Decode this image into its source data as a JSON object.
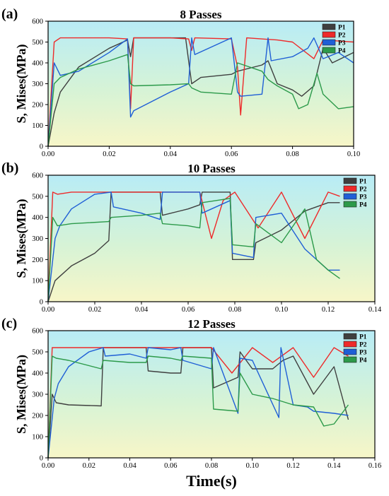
{
  "figure": {
    "xlabel": "Time(s)",
    "ylabel": "S, Mises(MPa)"
  },
  "series_colors": {
    "P1": "#3f3f3f",
    "P2": "#ee2a2a",
    "P3": "#1f5fd6",
    "P4": "#2c9a4a"
  },
  "chart_data": [
    {
      "type": "line",
      "panel": "(a)",
      "title": "8 Passes",
      "ylabel": "S, Mises(MPa)",
      "xlabel": "",
      "xlim": [
        0,
        0.1
      ],
      "ylim": [
        0,
        600
      ],
      "xticks": [
        0.0,
        0.02,
        0.04,
        0.06,
        0.08,
        0.1
      ],
      "xtick_labels": [
        "0.00",
        "0.02",
        "0.04",
        "0.06",
        "0.08",
        "0.10"
      ],
      "yticks": [
        0,
        100,
        200,
        300,
        400,
        500,
        600
      ],
      "legend_position": "top-right",
      "series": [
        {
          "name": "P1",
          "x": [
            0,
            0.002,
            0.004,
            0.01,
            0.02,
            0.026,
            0.027,
            0.028,
            0.035,
            0.045,
            0.047,
            0.05,
            0.06,
            0.062,
            0.07,
            0.072,
            0.075,
            0.08,
            0.083,
            0.087,
            0.09,
            0.093,
            0.1
          ],
          "y": [
            0,
            160,
            260,
            380,
            470,
            510,
            430,
            520,
            520,
            520,
            300,
            330,
            345,
            360,
            390,
            410,
            300,
            270,
            240,
            290,
            470,
            400,
            450
          ]
        },
        {
          "name": "P2",
          "x": [
            0,
            0.002,
            0.004,
            0.01,
            0.02,
            0.026,
            0.027,
            0.028,
            0.04,
            0.046,
            0.047,
            0.048,
            0.06,
            0.062,
            0.063,
            0.065,
            0.075,
            0.08,
            0.087,
            0.09,
            0.1
          ],
          "y": [
            0,
            500,
            520,
            520,
            520,
            515,
            180,
            520,
            520,
            515,
            460,
            520,
            515,
            380,
            150,
            520,
            510,
            500,
            420,
            510,
            500
          ]
        },
        {
          "name": "P3",
          "x": [
            0,
            0.002,
            0.004,
            0.01,
            0.02,
            0.026,
            0.027,
            0.028,
            0.04,
            0.046,
            0.047,
            0.048,
            0.06,
            0.062,
            0.063,
            0.07,
            0.072,
            0.073,
            0.08,
            0.085,
            0.087,
            0.09,
            0.095,
            0.1
          ],
          "y": [
            0,
            400,
            340,
            360,
            450,
            515,
            140,
            170,
            260,
            300,
            520,
            440,
            520,
            260,
            240,
            250,
            520,
            410,
            430,
            470,
            520,
            420,
            450,
            400
          ]
        },
        {
          "name": "P4",
          "x": [
            0,
            0.002,
            0.004,
            0.01,
            0.02,
            0.026,
            0.027,
            0.028,
            0.04,
            0.046,
            0.047,
            0.05,
            0.06,
            0.062,
            0.07,
            0.072,
            0.075,
            0.08,
            0.082,
            0.085,
            0.088,
            0.09,
            0.095,
            0.1
          ],
          "y": [
            0,
            300,
            330,
            370,
            410,
            440,
            300,
            290,
            295,
            300,
            280,
            260,
            250,
            400,
            360,
            320,
            290,
            250,
            180,
            200,
            350,
            250,
            180,
            190
          ]
        }
      ]
    },
    {
      "type": "line",
      "panel": "(b)",
      "title": "10 Passes",
      "ylabel": "S, Mises(MPa)",
      "xlabel": "",
      "xlim": [
        0,
        0.14
      ],
      "ylim": [
        0,
        600
      ],
      "xticks": [
        0.0,
        0.02,
        0.04,
        0.06,
        0.08,
        0.1,
        0.12,
        0.14
      ],
      "xtick_labels": [
        "0.00",
        "0.02",
        "0.04",
        "0.06",
        "0.08",
        "0.10",
        "0.12",
        "0.14"
      ],
      "yticks": [
        0,
        100,
        200,
        300,
        400,
        500,
        600
      ],
      "legend_position": "top-right",
      "series": [
        {
          "name": "P1",
          "x": [
            0,
            0.003,
            0.005,
            0.01,
            0.02,
            0.026,
            0.027,
            0.028,
            0.04,
            0.048,
            0.049,
            0.06,
            0.065,
            0.066,
            0.078,
            0.079,
            0.088,
            0.089,
            0.1,
            0.11,
            0.12,
            0.125
          ],
          "y": [
            0,
            100,
            120,
            170,
            230,
            290,
            520,
            520,
            520,
            520,
            410,
            440,
            460,
            520,
            520,
            200,
            200,
            280,
            340,
            430,
            470,
            470
          ]
        },
        {
          "name": "P2",
          "x": [
            0,
            0.002,
            0.004,
            0.01,
            0.03,
            0.05,
            0.065,
            0.07,
            0.075,
            0.08,
            0.09,
            0.1,
            0.11,
            0.12,
            0.125
          ],
          "y": [
            0,
            520,
            510,
            520,
            520,
            520,
            520,
            300,
            480,
            520,
            350,
            520,
            300,
            520,
            500
          ]
        },
        {
          "name": "P3",
          "x": [
            0,
            0.003,
            0.005,
            0.01,
            0.02,
            0.027,
            0.028,
            0.04,
            0.048,
            0.049,
            0.06,
            0.065,
            0.066,
            0.078,
            0.079,
            0.088,
            0.089,
            0.1,
            0.11,
            0.12,
            0.125
          ],
          "y": [
            0,
            300,
            360,
            440,
            510,
            520,
            450,
            420,
            390,
            520,
            520,
            520,
            420,
            480,
            230,
            210,
            400,
            420,
            250,
            150,
            150
          ]
        },
        {
          "name": "P4",
          "x": [
            0,
            0.002,
            0.004,
            0.01,
            0.026,
            0.027,
            0.04,
            0.048,
            0.049,
            0.06,
            0.065,
            0.066,
            0.078,
            0.079,
            0.088,
            0.089,
            0.1,
            0.11,
            0.115,
            0.12,
            0.125
          ],
          "y": [
            0,
            400,
            360,
            370,
            380,
            400,
            410,
            420,
            370,
            360,
            350,
            470,
            490,
            270,
            260,
            370,
            280,
            440,
            200,
            150,
            110
          ]
        }
      ]
    },
    {
      "type": "line",
      "panel": "(c)",
      "title": "12 Passes",
      "ylabel": "S, Mises(MPa)",
      "xlabel": "Time(s)",
      "xlim": [
        0,
        0.16
      ],
      "ylim": [
        0,
        600
      ],
      "xticks": [
        0.0,
        0.02,
        0.04,
        0.06,
        0.08,
        0.1,
        0.12,
        0.14,
        0.16
      ],
      "xtick_labels": [
        "0.00",
        "0.02",
        "0.04",
        "0.06",
        "0.08",
        "0.10",
        "0.12",
        "0.14",
        "0.16"
      ],
      "yticks": [
        0,
        100,
        200,
        300,
        400,
        500,
        600
      ],
      "legend_position": "top-right",
      "series": [
        {
          "name": "P1",
          "x": [
            0,
            0.002,
            0.004,
            0.01,
            0.026,
            0.027,
            0.04,
            0.048,
            0.049,
            0.06,
            0.065,
            0.066,
            0.08,
            0.081,
            0.093,
            0.094,
            0.1,
            0.11,
            0.115,
            0.12,
            0.13,
            0.14,
            0.147
          ],
          "y": [
            0,
            300,
            260,
            250,
            245,
            520,
            520,
            520,
            410,
            400,
            400,
            520,
            520,
            330,
            380,
            500,
            420,
            420,
            460,
            480,
            300,
            430,
            180
          ]
        },
        {
          "name": "P2",
          "x": [
            0,
            0.002,
            0.004,
            0.02,
            0.05,
            0.08,
            0.09,
            0.1,
            0.11,
            0.12,
            0.13,
            0.14,
            0.147
          ],
          "y": [
            0,
            520,
            520,
            520,
            520,
            520,
            400,
            520,
            450,
            520,
            380,
            520,
            480
          ]
        },
        {
          "name": "P3",
          "x": [
            0,
            0.003,
            0.005,
            0.01,
            0.02,
            0.027,
            0.028,
            0.04,
            0.048,
            0.049,
            0.06,
            0.065,
            0.066,
            0.08,
            0.081,
            0.093,
            0.094,
            0.1,
            0.113,
            0.114,
            0.12,
            0.127,
            0.13,
            0.14,
            0.147
          ],
          "y": [
            0,
            280,
            350,
            430,
            500,
            520,
            480,
            490,
            470,
            520,
            510,
            520,
            460,
            420,
            520,
            210,
            470,
            460,
            190,
            520,
            250,
            240,
            220,
            210,
            200
          ]
        },
        {
          "name": "P4",
          "x": [
            0,
            0.002,
            0.004,
            0.01,
            0.026,
            0.027,
            0.04,
            0.048,
            0.049,
            0.06,
            0.065,
            0.066,
            0.08,
            0.081,
            0.093,
            0.094,
            0.1,
            0.11,
            0.12,
            0.13,
            0.135,
            0.14,
            0.147
          ],
          "y": [
            0,
            480,
            470,
            460,
            420,
            460,
            450,
            450,
            480,
            470,
            460,
            480,
            470,
            230,
            220,
            400,
            300,
            280,
            250,
            240,
            150,
            160,
            250
          ]
        }
      ]
    }
  ]
}
